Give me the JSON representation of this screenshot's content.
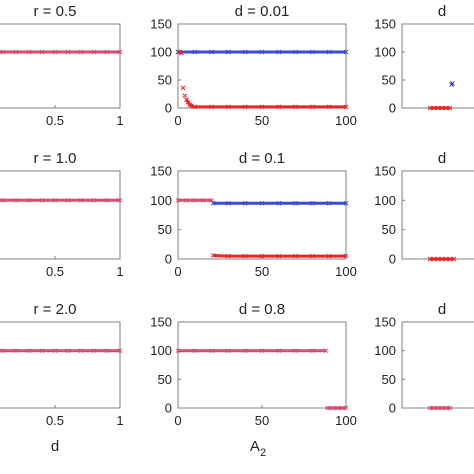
{
  "colors": {
    "blue": "#3a4bd6",
    "red": "#e8262a",
    "magenta": "#d64d6e",
    "frame": "#7f7f7f"
  },
  "chart_data": [
    {
      "type": "scatter",
      "title": "r = 0.5",
      "xlim": [
        0,
        1
      ],
      "ylim": [
        0,
        150
      ],
      "xticks": [
        "0.5",
        "1"
      ],
      "yticks": [],
      "xlabel": "",
      "series": [
        {
          "color": "magenta",
          "x": [
            0,
            0.1,
            0.2,
            0.3,
            0.4,
            0.5,
            0.6,
            0.7,
            0.8,
            0.9,
            1.0
          ],
          "y": [
            100,
            100,
            100,
            100,
            100,
            100,
            100,
            100,
            100,
            100,
            100
          ]
        }
      ]
    },
    {
      "type": "scatter",
      "title": "d = 0.01",
      "xlim": [
        0,
        100
      ],
      "ylim": [
        0,
        150
      ],
      "xticks": [
        "0",
        "50",
        "100"
      ],
      "yticks": [
        "0",
        "50",
        "100",
        "150"
      ],
      "xlabel": "",
      "series": [
        {
          "color": "blue",
          "x": [
            0,
            10,
            20,
            30,
            40,
            50,
            60,
            70,
            80,
            90,
            100
          ],
          "y": [
            100,
            100,
            100,
            100,
            100,
            100,
            100,
            100,
            100,
            100,
            100
          ]
        },
        {
          "color": "red",
          "x": [
            1,
            2,
            3,
            4,
            5,
            6,
            7,
            8,
            10,
            20,
            30,
            40,
            50,
            60,
            70,
            80,
            90,
            100
          ],
          "y": [
            100,
            98,
            36,
            22,
            15,
            10,
            6,
            4,
            2,
            2,
            2,
            2,
            2,
            2,
            2,
            2,
            2,
            2
          ]
        }
      ]
    },
    {
      "type": "scatter",
      "title": "d",
      "xlim": [
        0,
        100
      ],
      "ylim": [
        0,
        150
      ],
      "xticks": [],
      "yticks": [
        "0",
        "50",
        "100",
        "150"
      ],
      "xlabel": "",
      "series": [
        {
          "color": "red",
          "x": [
            35,
            40,
            45,
            50,
            55,
            60
          ],
          "y": [
            0,
            0,
            0,
            0,
            0,
            0
          ]
        },
        {
          "color": "blue",
          "x": [
            62,
            63
          ],
          "y": [
            42,
            44
          ]
        }
      ]
    },
    {
      "type": "scatter",
      "title": "r = 1.0",
      "xlim": [
        0,
        1
      ],
      "ylim": [
        0,
        150
      ],
      "xticks": [
        "0.5",
        "1"
      ],
      "yticks": [],
      "xlabel": "",
      "series": [
        {
          "color": "magenta",
          "x": [
            0,
            0.1,
            0.2,
            0.3,
            0.4,
            0.5,
            0.6,
            0.7,
            0.8,
            0.9,
            1.0
          ],
          "y": [
            100,
            100,
            100,
            100,
            100,
            100,
            100,
            100,
            100,
            100,
            100
          ]
        }
      ]
    },
    {
      "type": "scatter",
      "title": "d = 0.1",
      "xlim": [
        0,
        100
      ],
      "ylim": [
        0,
        150
      ],
      "xticks": [
        "0",
        "50",
        "100"
      ],
      "yticks": [
        "0",
        "50",
        "100",
        "150"
      ],
      "xlabel": "",
      "series": [
        {
          "color": "magenta",
          "x": [
            0,
            5,
            10,
            15,
            20
          ],
          "y": [
            100,
            100,
            100,
            100,
            100
          ]
        },
        {
          "color": "blue",
          "x": [
            21,
            30,
            40,
            50,
            60,
            70,
            80,
            90,
            100
          ],
          "y": [
            95,
            95,
            95,
            95,
            95,
            95,
            95,
            95,
            95
          ]
        },
        {
          "color": "red",
          "x": [
            21,
            30,
            40,
            50,
            60,
            70,
            80,
            90,
            100
          ],
          "y": [
            6,
            5,
            5,
            5,
            5,
            5,
            5,
            5,
            5
          ]
        }
      ]
    },
    {
      "type": "scatter",
      "title": "d",
      "xlim": [
        0,
        100
      ],
      "ylim": [
        0,
        150
      ],
      "xticks": [],
      "yticks": [
        "0",
        "50",
        "100",
        "150"
      ],
      "xlabel": "",
      "series": [
        {
          "color": "red",
          "x": [
            35,
            40,
            45,
            50,
            55,
            60,
            65
          ],
          "y": [
            0,
            0,
            0,
            0,
            0,
            0,
            0
          ]
        }
      ]
    },
    {
      "type": "scatter",
      "title": "r = 2.0",
      "xlim": [
        0,
        1
      ],
      "ylim": [
        0,
        150
      ],
      "xticks": [
        "0.5",
        "1"
      ],
      "yticks": [],
      "xlabel": "d",
      "series": [
        {
          "color": "magenta",
          "x": [
            0,
            0.1,
            0.2,
            0.3,
            0.4,
            0.5,
            0.6,
            0.7,
            0.8,
            0.9,
            1.0
          ],
          "y": [
            100,
            100,
            100,
            100,
            100,
            100,
            100,
            100,
            100,
            100,
            100
          ]
        }
      ]
    },
    {
      "type": "scatter",
      "title": "d = 0.8",
      "xlim": [
        0,
        100
      ],
      "ylim": [
        0,
        150
      ],
      "xticks": [
        "0",
        "50",
        "100"
      ],
      "yticks": [
        "0",
        "50",
        "100",
        "150"
      ],
      "xlabel": "A",
      "xlabel_sub": "2",
      "series": [
        {
          "color": "magenta",
          "x": [
            0,
            10,
            20,
            30,
            40,
            50,
            60,
            70,
            80,
            88
          ],
          "y": [
            100,
            100,
            100,
            100,
            100,
            100,
            100,
            100,
            100,
            100
          ]
        },
        {
          "color": "magenta",
          "x": [
            89,
            92,
            95,
            98,
            100
          ],
          "y": [
            0,
            0,
            0,
            0,
            0
          ]
        }
      ]
    },
    {
      "type": "scatter",
      "title": "d",
      "xlim": [
        0,
        100
      ],
      "ylim": [
        0,
        150
      ],
      "xticks": [],
      "yticks": [
        "0",
        "50",
        "100",
        "150"
      ],
      "xlabel": "",
      "series": [
        {
          "color": "magenta",
          "x": [
            35,
            40,
            45,
            50,
            55,
            60
          ],
          "y": [
            0,
            0,
            0,
            0,
            0,
            0
          ]
        }
      ]
    }
  ]
}
